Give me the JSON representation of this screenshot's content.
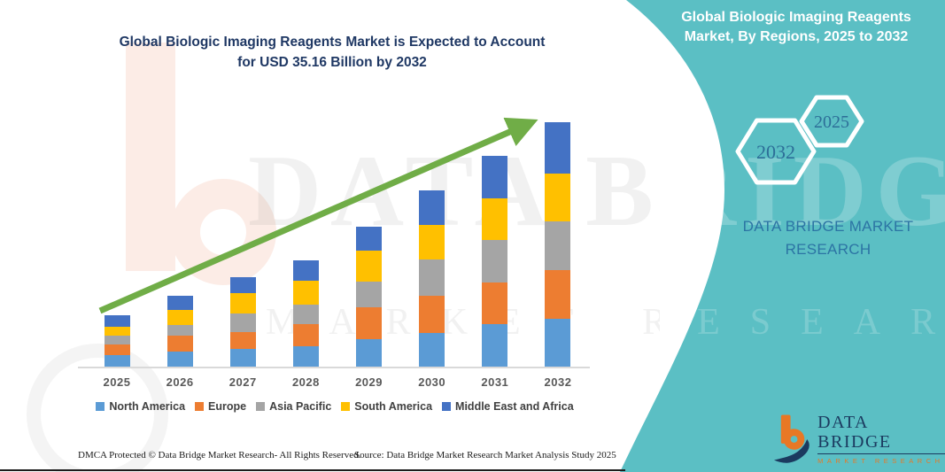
{
  "page": {
    "chart_title_line1": "Global Biologic Imaging Reagents Market is Expected to Account",
    "chart_title_line2": "for USD 35.16 Billion by 2032",
    "footer_left": "DMCA Protected © Data Bridge Market Research-  All Rights Reserved.",
    "footer_source": "Source: Data Bridge Market Research  Market Analysis Study 2025"
  },
  "side_panel": {
    "title_line1": "Global Biologic Imaging Reagents",
    "title_line2": "Market, By Regions, 2025 to 2032",
    "hexagon_left_year": "2032",
    "hexagon_right_year": "2025",
    "brand_line1": "DATA BRIDGE MARKET",
    "brand_line2": "RESEARCH",
    "background_color": "#5BBFC4"
  },
  "logo": {
    "name": "DATA BRIDGE",
    "tagline": "MARKET RESEARCH"
  },
  "watermark": {
    "text_primary": "DATA BRIDGE",
    "text_secondary": "MARKET RESEARCH"
  },
  "chart_data": {
    "type": "bar",
    "stacked": true,
    "title": "Global Biologic Imaging Reagents Market is Expected to Account for USD 35.16 Billion by 2032",
    "unit": "USD Billion",
    "value_axis_visible": false,
    "values_estimated_from_bar_heights": true,
    "categories": [
      "2025",
      "2026",
      "2027",
      "2028",
      "2029",
      "2030",
      "2031",
      "2032"
    ],
    "series": [
      {
        "name": "North America",
        "color": "#5B9BD5",
        "values": [
          1.66,
          2.17,
          2.55,
          2.93,
          3.95,
          4.84,
          6.11,
          6.88
        ]
      },
      {
        "name": "Europe",
        "color": "#ED7D31",
        "values": [
          1.53,
          2.29,
          2.42,
          3.18,
          4.59,
          5.35,
          5.99,
          7.01
        ]
      },
      {
        "name": "Asia Pacific",
        "color": "#A5A5A5",
        "values": [
          1.27,
          1.53,
          2.68,
          2.8,
          3.69,
          5.22,
          6.11,
          7.01
        ]
      },
      {
        "name": "South America",
        "color": "#FFC000",
        "values": [
          1.27,
          2.17,
          2.93,
          3.44,
          4.46,
          4.97,
          5.99,
          6.88
        ]
      },
      {
        "name": "Middle East and Africa",
        "color": "#4472C4",
        "values": [
          1.66,
          2.04,
          2.29,
          2.93,
          3.44,
          4.97,
          6.11,
          7.39
        ]
      }
    ],
    "totals": [
      7.39,
      10.2,
      12.87,
      15.28,
      20.13,
      25.35,
      30.31,
      35.17
    ],
    "highlight_total_2032": "USD 35.16 Billion",
    "legend_position": "bottom",
    "trend_arrow": true,
    "trend_arrow_color": "#70AD47",
    "grid": false
  }
}
